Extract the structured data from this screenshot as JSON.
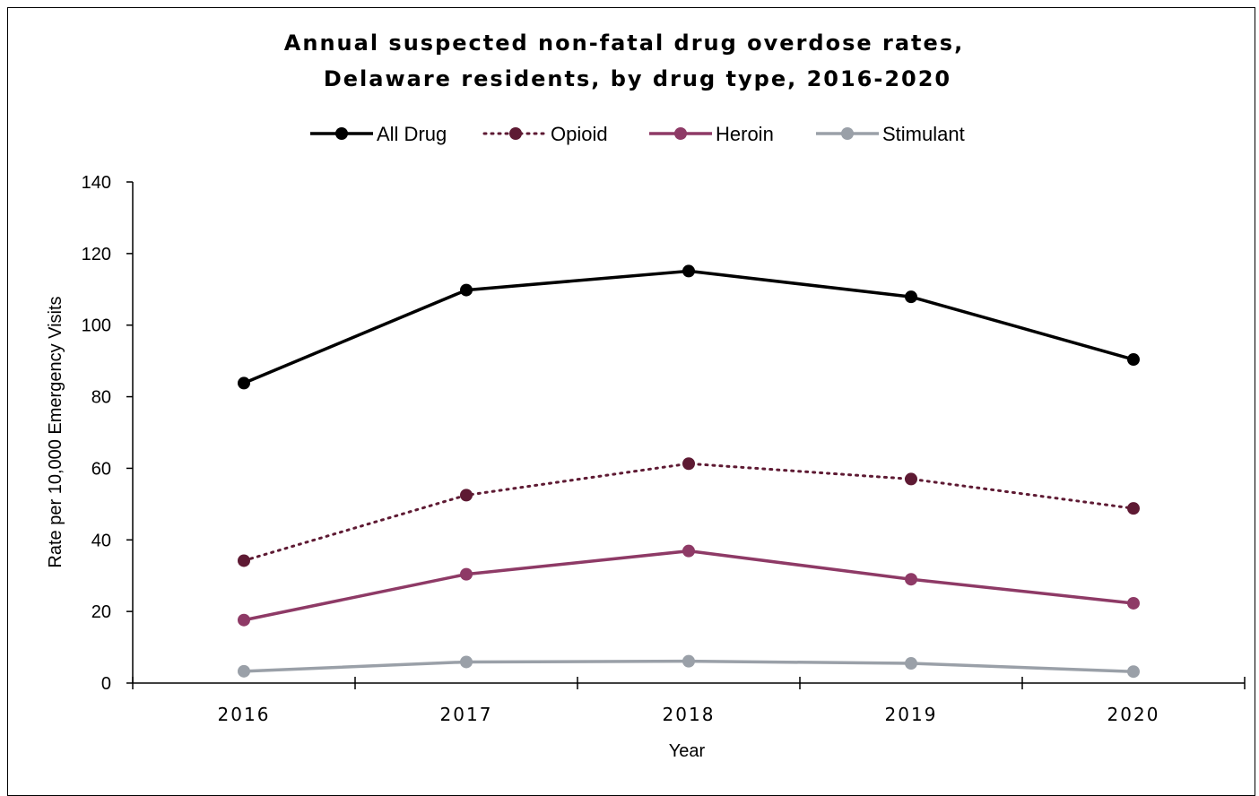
{
  "chart_data": {
    "type": "line",
    "title_lines": [
      "Annual suspected non-fatal drug overdose rates,",
      "Delaware residents, by drug type, 2016-2020"
    ],
    "xlabel": "Year",
    "ylabel": "Rate per 10,000 Emergency Visits",
    "categories": [
      "2016",
      "2017",
      "2018",
      "2019",
      "2020"
    ],
    "ylim": [
      0,
      140
    ],
    "yticks": [
      0,
      20,
      40,
      60,
      80,
      100,
      120,
      140
    ],
    "grid": false,
    "legend_position": "top",
    "series": [
      {
        "name": "All Drug",
        "values": [
          83.8,
          109.8,
          115.1,
          107.9,
          90.4
        ],
        "color": "#000000",
        "style": "solid"
      },
      {
        "name": "Opioid",
        "values": [
          34.2,
          52.5,
          61.3,
          57.0,
          48.8
        ],
        "color": "#5e1a33",
        "style": "dotted"
      },
      {
        "name": "Heroin",
        "values": [
          17.6,
          30.4,
          36.9,
          29.0,
          22.3
        ],
        "color": "#8e3a66",
        "style": "solid"
      },
      {
        "name": "Stimulant",
        "values": [
          3.3,
          5.9,
          6.1,
          5.5,
          3.2
        ],
        "color": "#9aa0a8",
        "style": "solid"
      }
    ]
  }
}
